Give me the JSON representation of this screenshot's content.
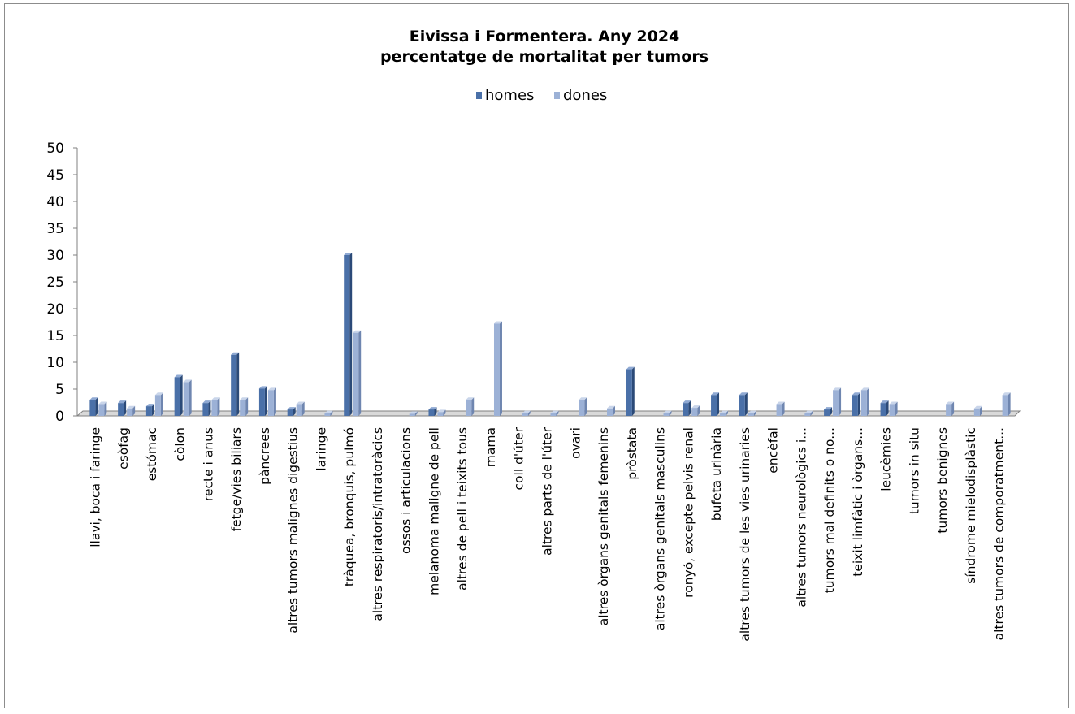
{
  "chart_data": {
    "type": "bar",
    "title": "Eivissa i Formentera. Any 2024",
    "subtitle": "percentatge de mortalitat per tumors",
    "xlabel": "",
    "ylabel": "",
    "ylim": [
      0,
      50
    ],
    "yticks": [
      0,
      5,
      10,
      15,
      20,
      25,
      30,
      35,
      40,
      45,
      50
    ],
    "grid": false,
    "legend_position": "top",
    "categories": [
      "llavi, boca i faringe",
      "esòfag",
      "estómac",
      "còlon",
      "recte i anus",
      "fetge/vies biliars",
      "pàncrees",
      "altres tumors malignes digestius",
      "laringe",
      "tràquea, bronquis, pulmó",
      "altres respiratoris/intratoràcics",
      "ossos i articulacions",
      "melanoma maligne de pell",
      "altres de pell i teixits tous",
      "mama",
      "coll d'úter",
      "altres parts de l'úter",
      "ovari",
      "altres òrgans genitals femenins",
      "pròstata",
      "altres òrgans genitals masculins",
      "ronyó, excepte pelvis renal",
      "bufeta urinària",
      "altres tumors de les vies urinaries",
      "encèfal",
      "altres tumors neurològics i...",
      "tumors mal definits o no...",
      "teixit limfàtic i òrgans...",
      "leucèmies",
      "tumors in situ",
      "tumors benignes",
      "síndrome mielodisplàstic",
      "altres tumors de comporatment..."
    ],
    "series": [
      {
        "name": "homes",
        "color": "#4a70a8",
        "values": [
          3.0,
          2.4,
          1.8,
          7.2,
          2.4,
          11.4,
          5.1,
          1.2,
          0.0,
          30.0,
          0.0,
          0.0,
          1.2,
          0.0,
          0.0,
          0.0,
          0.0,
          0.0,
          0.0,
          8.7,
          0.0,
          2.4,
          3.9,
          3.9,
          0.0,
          0.0,
          1.2,
          3.9,
          2.4,
          0.0,
          0.0,
          0.0,
          0.0
        ]
      },
      {
        "name": "dones",
        "color": "#9cb1d6",
        "values": [
          2.2,
          1.4,
          3.9,
          6.3,
          3.0,
          3.0,
          4.8,
          2.2,
          0.5,
          15.5,
          0.0,
          0.4,
          0.7,
          3.0,
          17.2,
          0.5,
          0.5,
          3.0,
          1.4,
          0.0,
          0.5,
          1.5,
          0.5,
          0.5,
          2.2,
          0.5,
          4.8,
          4.8,
          2.2,
          0.0,
          2.2,
          1.4,
          3.9
        ]
      }
    ]
  }
}
